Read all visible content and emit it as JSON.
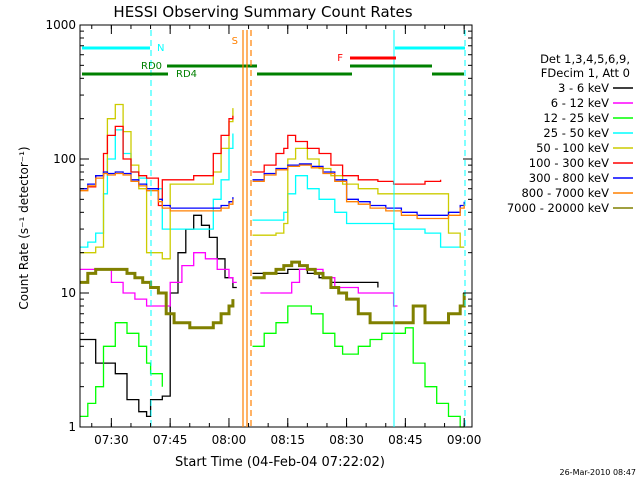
{
  "chart_data": {
    "type": "line",
    "title": "HESSI Observing Summary Count Rates",
    "xlabel": "Start Time (04-Feb-04 07:22:02)",
    "ylabel": "Count Rate (s⁻¹ detector⁻¹)",
    "y_scale": "log",
    "ylim": [
      1,
      1000
    ],
    "xlim": [
      "07:22",
      "09:02"
    ],
    "y_ticks": [
      {
        "value": 1,
        "label": "1"
      },
      {
        "value": 10,
        "label": "10"
      },
      {
        "value": 100,
        "label": "100"
      },
      {
        "value": 1000,
        "label": "1000"
      }
    ],
    "x_ticks": [
      {
        "value": "07:30",
        "label": "07:30"
      },
      {
        "value": "07:45",
        "label": "07:45"
      },
      {
        "value": "08:00",
        "label": "08:00"
      },
      {
        "value": "08:15",
        "label": "08:15"
      },
      {
        "value": "08:30",
        "label": "08:30"
      },
      {
        "value": "08:45",
        "label": "08:45"
      },
      {
        "value": "09:00",
        "label": "09:00"
      }
    ],
    "legend_header": [
      "Det 1,3,4,5,6,9,",
      "FDecim 1, Att 0"
    ],
    "legend_position": "right",
    "series": [
      {
        "name": "3 - 6 keV",
        "color": "#000000",
        "x": [
          "07:22",
          "07:26",
          "07:31",
          "07:34",
          "07:37",
          "07:39",
          "07:40",
          "07:43",
          "07:45",
          "07:47",
          "07:49",
          "07:51",
          "07:53",
          "07:55",
          "07:57",
          "07:59",
          "08:01",
          "08:02",
          "08:04",
          "08:06",
          "08:09",
          "08:12",
          "08:15",
          "08:17",
          "08:20",
          "08:23",
          "08:26",
          "08:29",
          "08:31",
          "08:33",
          "08:36",
          "08:38"
        ],
        "y": [
          4.5,
          3.0,
          2.5,
          1.6,
          1.3,
          1.2,
          1.6,
          1.7,
          10,
          20,
          30,
          38,
          32,
          26,
          18,
          13,
          11,
          11,
          null,
          14,
          14,
          14,
          15,
          15,
          14,
          13,
          12,
          12,
          12,
          12,
          12,
          11
        ]
      },
      {
        "name": "6 - 12 keV",
        "color": "#ff00ff",
        "x": [
          "07:22",
          "07:26",
          "07:28",
          "07:30",
          "07:33",
          "07:36",
          "07:39",
          "07:42",
          "07:43",
          "07:45",
          "07:48",
          "07:51",
          "07:54",
          "07:57",
          "08:00",
          "08:01",
          "08:02",
          "08:04",
          "08:08",
          "08:12",
          "08:16",
          "08:18",
          "08:21",
          "08:24",
          "08:27",
          "08:30",
          "08:33",
          "08:36",
          "08:39",
          "08:42",
          "08:43",
          "08:45"
        ],
        "y": [
          15,
          15,
          15,
          12,
          10,
          9,
          8,
          8,
          8,
          12,
          16,
          20,
          18,
          15,
          13,
          12,
          12,
          null,
          10,
          10,
          12,
          15,
          15,
          13,
          11,
          11,
          10,
          10,
          10,
          8,
          8,
          null
        ]
      },
      {
        "name": "12 - 25 keV",
        "color": "#00ff00",
        "x": [
          "07:22",
          "07:24",
          "07:26",
          "07:28",
          "07:31",
          "07:34",
          "07:37",
          "07:39",
          "07:40",
          "07:43",
          "07:46",
          "07:49",
          "07:52",
          "07:55",
          "07:58",
          "08:01",
          "08:02",
          "08:04",
          "08:06",
          "08:09",
          "08:12",
          "08:15",
          "08:18",
          "08:21",
          "08:24",
          "08:27",
          "08:29",
          "08:30",
          "08:33",
          "08:36",
          "08:39",
          "08:42",
          "08:45",
          "08:47",
          "08:50",
          "08:53",
          "08:56",
          "08:59",
          "09:00"
        ],
        "y": [
          1.2,
          1.5,
          2.0,
          4.0,
          6.0,
          5.0,
          4.0,
          3.0,
          2.5,
          2.0,
          null,
          null,
          null,
          null,
          null,
          null,
          null,
          null,
          4.0,
          5.0,
          6.0,
          8.0,
          8.0,
          7.0,
          5.0,
          4.0,
          3.5,
          3.5,
          4.0,
          4.5,
          5.0,
          5.0,
          5.5,
          3.0,
          2.0,
          1.5,
          1.2,
          1.0,
          1.0
        ]
      },
      {
        "name": "25 - 50 keV",
        "color": "#00ffff",
        "x": [
          "07:22",
          "07:24",
          "07:26",
          "07:28",
          "07:29",
          "07:31",
          "07:33",
          "07:35",
          "07:37",
          "07:39",
          "07:43",
          "07:45",
          "07:51",
          "07:56",
          "07:58",
          "08:00",
          "08:01",
          "08:02",
          "08:04",
          "08:06",
          "08:09",
          "08:12",
          "08:14",
          "08:15",
          "08:17",
          "08:20",
          "08:23",
          "08:27",
          "08:30",
          "08:33",
          "08:38",
          "08:42",
          "08:45",
          "08:50",
          "08:54",
          "08:56",
          "08:59",
          "09:00"
        ],
        "y": [
          22,
          24,
          28,
          55,
          100,
          165,
          110,
          80,
          72,
          60,
          30,
          30,
          30,
          50,
          70,
          120,
          155,
          null,
          null,
          35,
          35,
          35,
          40,
          55,
          75,
          60,
          50,
          40,
          33,
          33,
          33,
          30,
          30,
          28,
          22,
          22,
          22,
          22
        ]
      },
      {
        "name": "50 - 100 keV",
        "color": "#cccc00",
        "x": [
          "07:22",
          "07:24",
          "07:26",
          "07:28",
          "07:29",
          "07:31",
          "07:33",
          "07:35",
          "07:37",
          "07:39",
          "07:43",
          "07:45",
          "07:51",
          "07:56",
          "07:58",
          "08:00",
          "08:01",
          "08:02",
          "08:04",
          "08:06",
          "08:09",
          "08:12",
          "08:14",
          "08:15",
          "08:17",
          "08:20",
          "08:23",
          "08:26",
          "08:29",
          "08:30",
          "08:33",
          "08:38",
          "08:42",
          "08:45",
          "08:50",
          "08:54",
          "08:56",
          "08:59",
          "09:00"
        ],
        "y": [
          20,
          20,
          22,
          80,
          200,
          255,
          160,
          90,
          60,
          20,
          18,
          65,
          65,
          80,
          120,
          190,
          240,
          null,
          null,
          27,
          27,
          28,
          33,
          100,
          120,
          100,
          85,
          75,
          65,
          65,
          60,
          55,
          55,
          55,
          55,
          55,
          28,
          22,
          22
        ]
      },
      {
        "name": "100 - 300 keV",
        "color": "#ff0000",
        "x": [
          "07:22",
          "07:24",
          "07:26",
          "07:28",
          "07:29",
          "07:31",
          "07:33",
          "07:35",
          "07:37",
          "07:39",
          "07:42",
          "07:43",
          "07:45",
          "07:51",
          "07:56",
          "07:58",
          "08:00",
          "08:01",
          "08:02",
          "08:04",
          "08:06",
          "08:09",
          "08:12",
          "08:14",
          "08:15",
          "08:17",
          "08:20",
          "08:23",
          "08:26",
          "08:29",
          "08:30",
          "08:33",
          "08:38",
          "08:42",
          "08:45",
          "08:50",
          "08:54",
          "08:56",
          "08:59",
          "09:00"
        ],
        "y": [
          60,
          62,
          75,
          110,
          150,
          175,
          100,
          80,
          75,
          72,
          45,
          70,
          70,
          75,
          110,
          150,
          200,
          210,
          null,
          null,
          80,
          90,
          110,
          120,
          150,
          135,
          120,
          110,
          90,
          75,
          75,
          70,
          68,
          65,
          65,
          68,
          70,
          null,
          null,
          null
        ]
      },
      {
        "name": "300 - 800 keV",
        "color": "#0000ff",
        "x": [
          "07:22",
          "07:24",
          "07:26",
          "07:28",
          "07:29",
          "07:31",
          "07:33",
          "07:35",
          "07:37",
          "07:39",
          "07:42",
          "07:43",
          "07:45",
          "07:51",
          "07:56",
          "07:58",
          "08:00",
          "08:01",
          "08:02",
          "08:04",
          "08:06",
          "08:09",
          "08:12",
          "08:15",
          "08:18",
          "08:21",
          "08:24",
          "08:27",
          "08:30",
          "08:33",
          "08:36",
          "08:40",
          "08:44",
          "08:48",
          "08:52",
          "08:56",
          "08:59",
          "09:00"
        ],
        "y": [
          60,
          65,
          75,
          80,
          78,
          80,
          78,
          70,
          65,
          60,
          50,
          45,
          43,
          43,
          43,
          45,
          48,
          52,
          null,
          null,
          70,
          78,
          85,
          90,
          92,
          88,
          80,
          70,
          50,
          48,
          45,
          43,
          40,
          38,
          38,
          40,
          45,
          48
        ]
      },
      {
        "name": "800 - 7000 keV",
        "color": "#ff8000",
        "x": [
          "07:22",
          "07:24",
          "07:26",
          "07:28",
          "07:29",
          "07:31",
          "07:33",
          "07:35",
          "07:37",
          "07:39",
          "07:42",
          "07:43",
          "07:45",
          "07:51",
          "07:56",
          "07:58",
          "08:00",
          "08:01",
          "08:02",
          "08:04",
          "08:06",
          "08:09",
          "08:12",
          "08:15",
          "08:18",
          "08:21",
          "08:24",
          "08:27",
          "08:30",
          "08:33",
          "08:36",
          "08:40",
          "08:44",
          "08:48",
          "08:52",
          "08:56",
          "08:59",
          "09:00"
        ],
        "y": [
          58,
          63,
          72,
          78,
          76,
          78,
          76,
          68,
          63,
          58,
          48,
          43,
          41,
          41,
          41,
          43,
          46,
          50,
          null,
          null,
          68,
          76,
          83,
          88,
          90,
          86,
          78,
          68,
          48,
          46,
          43,
          41,
          38,
          36,
          36,
          38,
          43,
          46
        ]
      },
      {
        "name": "7000 - 20000 keV",
        "color": "#808000",
        "x": [
          "07:22",
          "07:24",
          "07:26",
          "07:28",
          "07:30",
          "07:32",
          "07:34",
          "07:36",
          "07:38",
          "07:40",
          "07:42",
          "07:44",
          "07:46",
          "07:50",
          "07:54",
          "07:56",
          "07:58",
          "08:00",
          "08:01",
          "08:02",
          "08:04",
          "08:06",
          "08:09",
          "08:12",
          "08:14",
          "08:16",
          "08:18",
          "08:20",
          "08:22",
          "08:24",
          "08:26",
          "08:28",
          "08:30",
          "08:33",
          "08:36",
          "08:39",
          "08:42",
          "08:45",
          "08:47",
          "08:50",
          "08:53",
          "08:56",
          "08:59",
          "09:00"
        ],
        "y": [
          12,
          14,
          15,
          15,
          15,
          15,
          14,
          13,
          12,
          11,
          10,
          7,
          6,
          5.5,
          5.5,
          6,
          7,
          8,
          9,
          null,
          null,
          13,
          14,
          15,
          16,
          17,
          16,
          15,
          14,
          13,
          11,
          10,
          9,
          7,
          6,
          6,
          6,
          6,
          8,
          6,
          6,
          7,
          8,
          10
        ]
      }
    ],
    "markers": [
      {
        "label": "N",
        "color": "#00ffff"
      },
      {
        "label": "RD0",
        "color": "#008000"
      },
      {
        "label": "RD4",
        "color": "#008000"
      },
      {
        "label": "S",
        "color": "#ff8000"
      },
      {
        "label": "F",
        "color": "#ff0000"
      }
    ],
    "footer_timestamp": "26-Mar-2010 08:47"
  }
}
